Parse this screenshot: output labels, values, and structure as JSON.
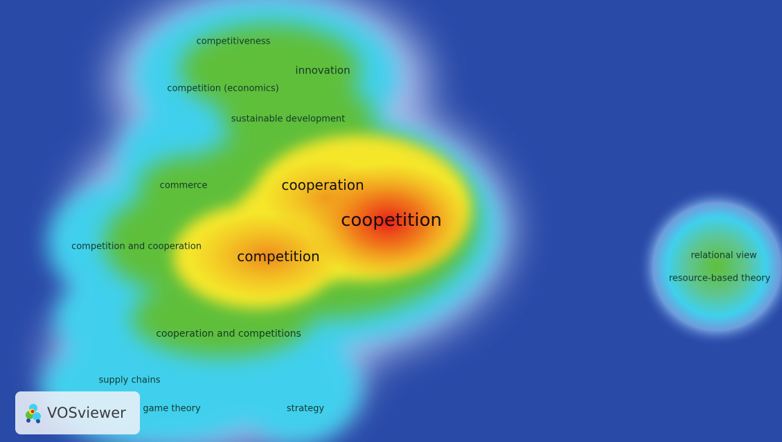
{
  "terms": {
    "competitiveness": "competitiveness",
    "innovation": "innovation",
    "competition_economics": "competition (economics)",
    "sustainable_development": "sustainable development",
    "commerce": "commerce",
    "cooperation": "cooperation",
    "coopetition": "coopetition",
    "competition_and_cooperation": "competition and cooperation",
    "competition": "competition",
    "cooperation_and_competitions": "cooperation and competitions",
    "supply_chains": "supply chains",
    "game_theory": "game theory",
    "strategy": "strategy",
    "relational_view": "relational view",
    "resource_based_theory": "resource-based theory"
  },
  "badge": {
    "label": "VOSviewer",
    "icon": "vosviewer-logo-icon"
  },
  "colors": {
    "background": "#2a4aa8",
    "low": "#3fd0ee",
    "mid": "#5fbf3a",
    "high": "#f5e62a",
    "peak": "#e8201a"
  }
}
